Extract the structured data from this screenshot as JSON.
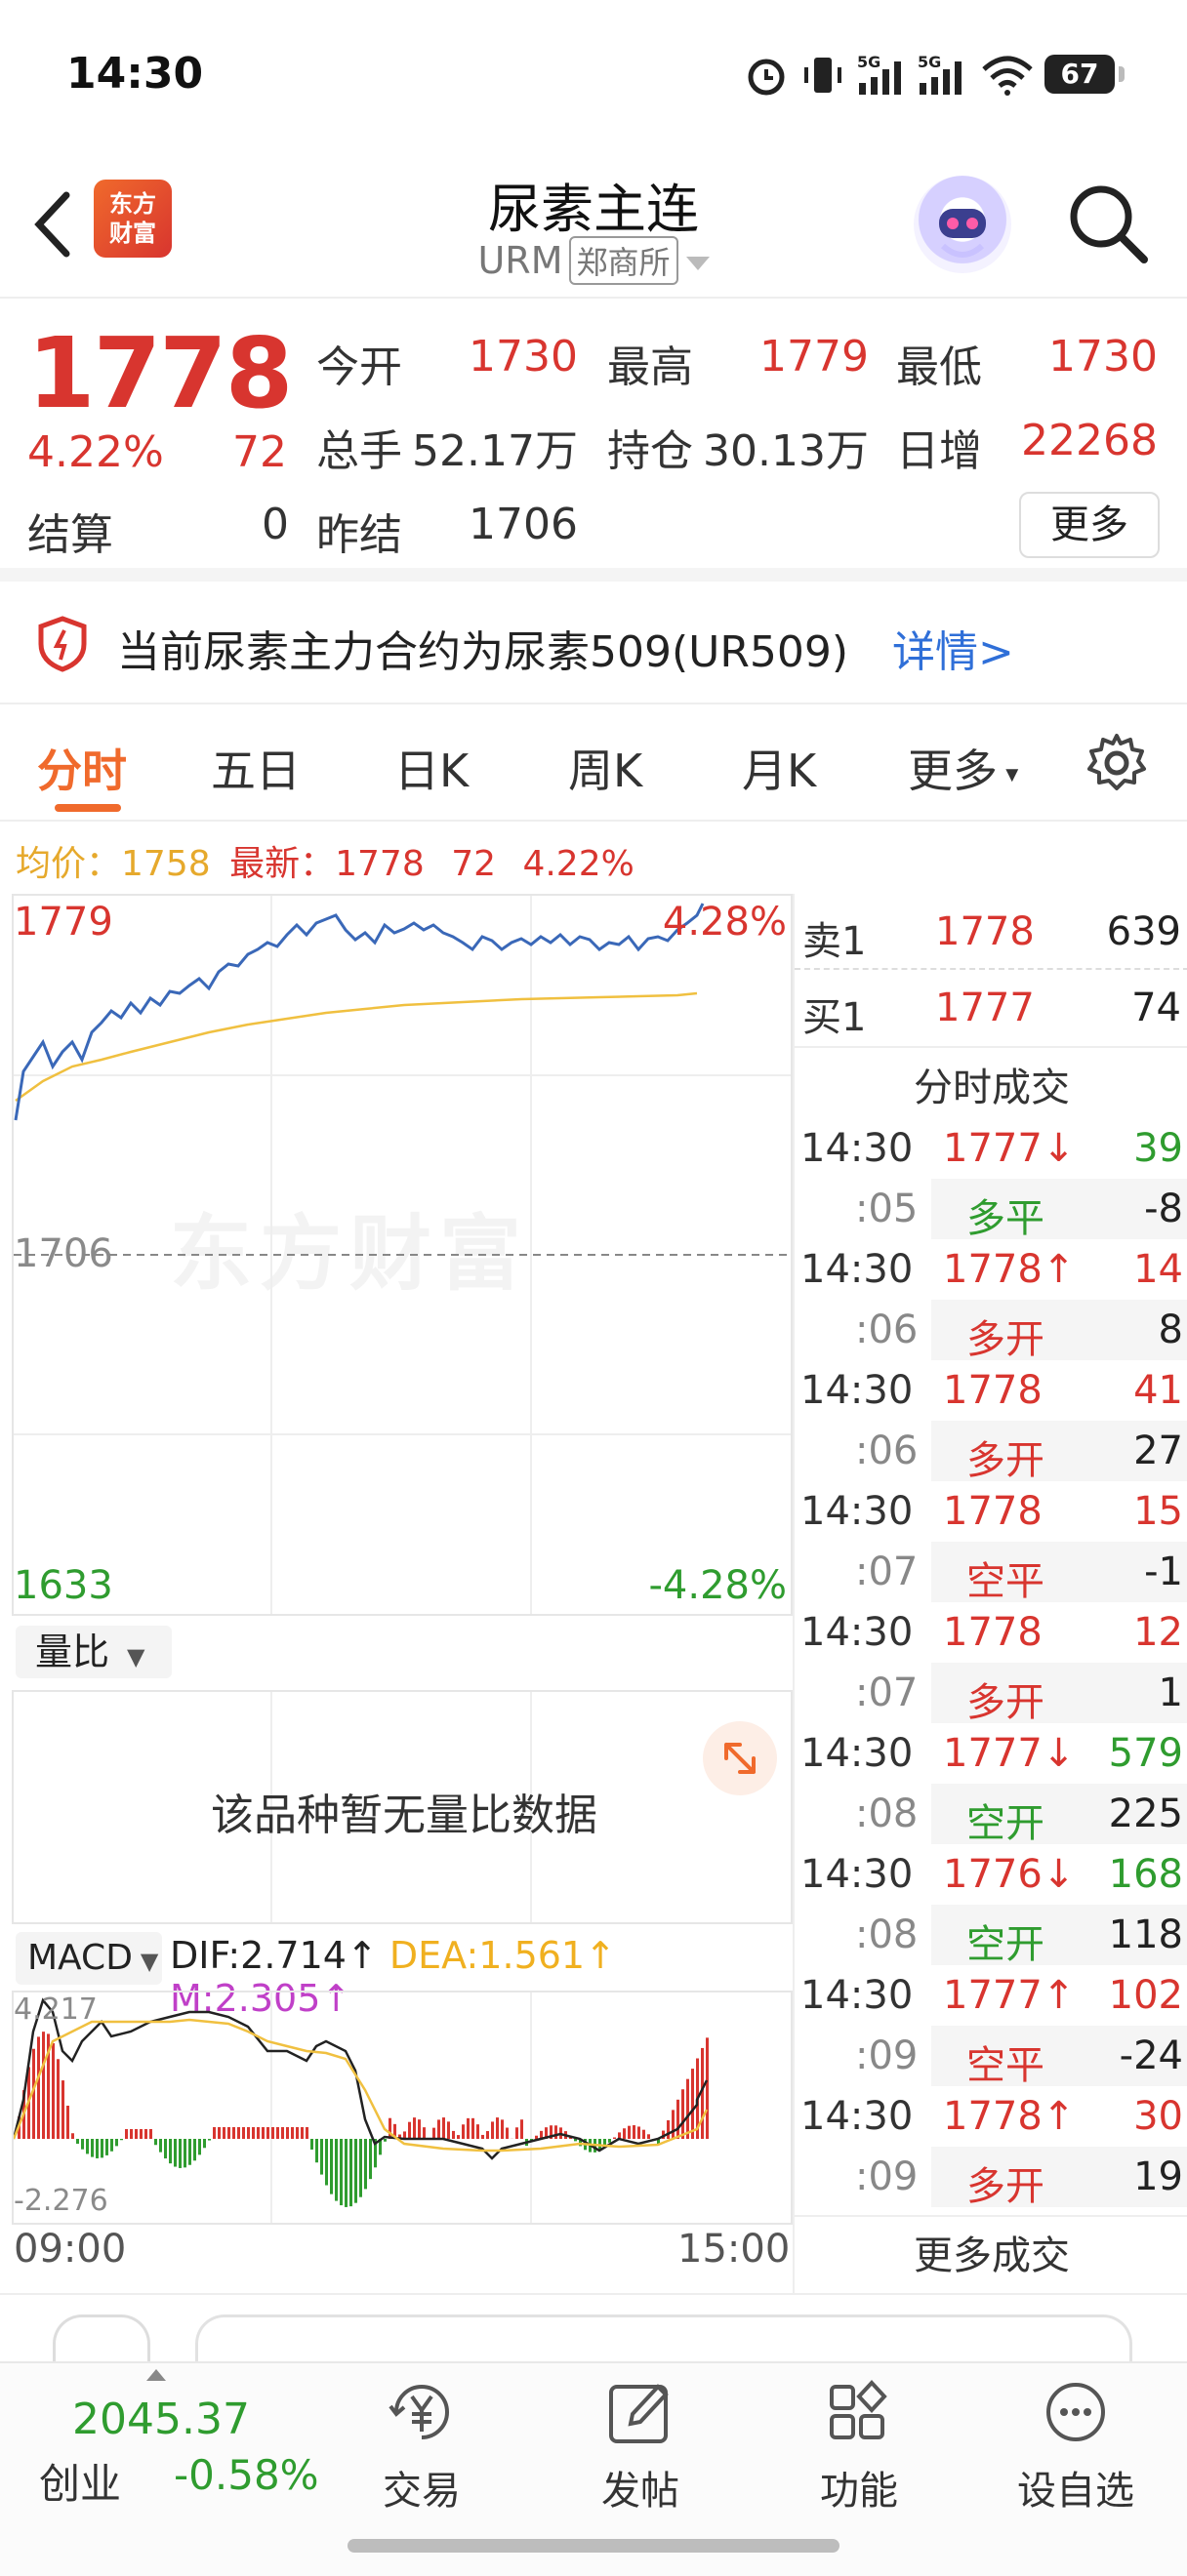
{
  "status_bar": {
    "time": "14:30",
    "battery": "67"
  },
  "header": {
    "title": "尿素主连",
    "symbol": "URM",
    "exchange": "郑商所",
    "logo_text": "东方财富"
  },
  "quote": {
    "last": "1778",
    "change_pct": "4.22%",
    "change_abs": "72",
    "settle_label": "结算",
    "settle": "0",
    "open_label": "今开",
    "open": "1730",
    "high_label": "最高",
    "high": "1779",
    "low_label": "最低",
    "low": "1730",
    "volume_label": "总手",
    "volume": "52.17万",
    "oi_label": "持仓",
    "oi": "30.13万",
    "daily_inc_label": "日增",
    "daily_inc": "22268",
    "prev_settle_label": "昨结",
    "prev_settle": "1706",
    "more_label": "更多"
  },
  "notice": {
    "text": "当前尿素主力合约为尿素509(UR509)",
    "link": "详情>"
  },
  "tabs": [
    "分时",
    "五日",
    "日K",
    "周K",
    "月K",
    "更多"
  ],
  "avg_bar": {
    "avg_label": "均价：",
    "avg": "1758",
    "latest_label": "最新：",
    "latest": "1778",
    "chg": "72",
    "pct": "4.22%"
  },
  "chart": {
    "watermark": "东方财富",
    "top_price": "1779",
    "top_pct": "4.28%",
    "mid_price": "1706",
    "bottom_price": "1633",
    "bottom_pct": "-4.28%",
    "start_time": "09:00",
    "end_time": "15:00"
  },
  "volume_ratio": {
    "label": "量比",
    "empty_message": "该品种暂无量比数据"
  },
  "macd": {
    "label": "MACD",
    "dif": "DIF:2.714↑",
    "dea": "DEA:1.561↑",
    "m": "M:2.305↑",
    "top": "4.217",
    "bottom": "-2.276"
  },
  "order_book": {
    "ask": {
      "label": "卖1",
      "price": "1778",
      "vol": "639"
    },
    "bid": {
      "label": "买1",
      "price": "1777",
      "vol": "74"
    }
  },
  "trades": {
    "title": "分时成交",
    "more": "更多成交",
    "rows": [
      {
        "time": "14:30",
        "price": "1777↓",
        "vol": "39",
        "sec": ":05",
        "type": "多平",
        "delta": "-8",
        "pc": "red",
        "vc": "green",
        "tc": "green"
      },
      {
        "time": "14:30",
        "price": "1778↑",
        "vol": "14",
        "sec": ":06",
        "type": "多开",
        "delta": "8",
        "pc": "red",
        "vc": "red",
        "tc": "red"
      },
      {
        "time": "14:30",
        "price": "1778",
        "vol": "41",
        "sec": ":06",
        "type": "多开",
        "delta": "27",
        "pc": "red",
        "vc": "red",
        "tc": "red"
      },
      {
        "time": "14:30",
        "price": "1778",
        "vol": "15",
        "sec": ":07",
        "type": "空平",
        "delta": "-1",
        "pc": "red",
        "vc": "red",
        "tc": "red"
      },
      {
        "time": "14:30",
        "price": "1778",
        "vol": "12",
        "sec": ":07",
        "type": "多开",
        "delta": "1",
        "pc": "red",
        "vc": "red",
        "tc": "red"
      },
      {
        "time": "14:30",
        "price": "1777↓",
        "vol": "579",
        "sec": ":08",
        "type": "空开",
        "delta": "225",
        "pc": "red",
        "vc": "green",
        "tc": "green"
      },
      {
        "time": "14:30",
        "price": "1776↓",
        "vol": "168",
        "sec": ":08",
        "type": "空开",
        "delta": "118",
        "pc": "red",
        "vc": "green",
        "tc": "green"
      },
      {
        "time": "14:30",
        "price": "1777↑",
        "vol": "102",
        "sec": ":09",
        "type": "空平",
        "delta": "-24",
        "pc": "red",
        "vc": "red",
        "tc": "red"
      },
      {
        "time": "14:30",
        "price": "1778↑",
        "vol": "30",
        "sec": ":09",
        "type": "多开",
        "delta": "19",
        "pc": "red",
        "vc": "red",
        "tc": "red"
      }
    ]
  },
  "bottom_nav": {
    "index_value": "2045.37",
    "index_name": "创业",
    "index_change": "-0.58%",
    "items": [
      "交易",
      "发帖",
      "功能",
      "设自选"
    ]
  },
  "colors": {
    "up": "#d8352f",
    "down": "#2f9c2f",
    "price_line": "#3a68b8",
    "avg_line": "#f0c040",
    "accent": "#f06a2c",
    "link": "#2f6fd8"
  }
}
